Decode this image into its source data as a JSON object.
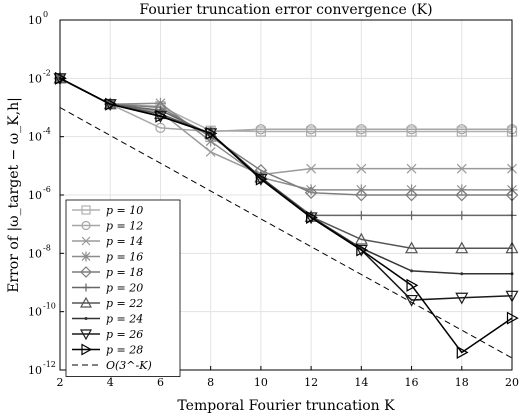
{
  "chart_data": {
    "type": "line",
    "title": "Fourier truncation error convergence (K)",
    "xlabel": "Temporal Fourier truncation K",
    "ylabel": "Error of |ω_target − ω_K,h|",
    "xlim": [
      2,
      20
    ],
    "ylim": [
      1e-12,
      1
    ],
    "yscale": "log",
    "grid": true,
    "legend_position": "lower-left",
    "x": [
      2,
      4,
      6,
      8,
      10,
      12,
      14,
      16,
      18,
      20
    ],
    "xticks": [
      "2",
      "4",
      "6",
      "8",
      "10",
      "12",
      "14",
      "16",
      "18",
      "20"
    ],
    "yticks": [
      {
        "base": "10",
        "exp": "0"
      },
      {
        "base": "10",
        "exp": "-2"
      },
      {
        "base": "10",
        "exp": "-4"
      },
      {
        "base": "10",
        "exp": "-6"
      },
      {
        "base": "10",
        "exp": "-8"
      },
      {
        "base": "10",
        "exp": "-10"
      },
      {
        "base": "10",
        "exp": "-12"
      }
    ],
    "series": [
      {
        "name": "p = 10",
        "color": "#b0b0b0",
        "marker": "square",
        "values": [
          0.01,
          0.0013,
          0.0011,
          0.00016,
          0.00015,
          0.00015,
          0.00015,
          0.00015,
          0.00015,
          0.00015
        ]
      },
      {
        "name": "p = 12",
        "color": "#a6a6a6",
        "marker": "circle",
        "values": [
          0.01,
          0.0013,
          0.0002,
          0.00015,
          0.00018,
          0.00018,
          0.00018,
          0.00018,
          0.00018,
          0.00018
        ]
      },
      {
        "name": "p = 14",
        "color": "#9a9a9a",
        "marker": "x",
        "values": [
          0.01,
          0.0013,
          0.0007,
          3e-05,
          5e-06,
          8e-06,
          8e-06,
          8e-06,
          8e-06,
          8e-06
        ]
      },
      {
        "name": "p = 16",
        "color": "#8c8c8c",
        "marker": "star",
        "values": [
          0.01,
          0.0013,
          0.0014,
          7e-05,
          4e-06,
          1.5e-06,
          1.5e-06,
          1.5e-06,
          1.5e-06,
          1.5e-06
        ]
      },
      {
        "name": "p = 18",
        "color": "#7d7d7d",
        "marker": "diamond",
        "values": [
          0.01,
          0.0013,
          0.001,
          0.0001,
          7e-06,
          1.2e-06,
          1e-06,
          1e-06,
          1e-06,
          1e-06
        ]
      },
      {
        "name": "p = 20",
        "color": "#666666",
        "marker": "plus",
        "values": [
          0.01,
          0.0013,
          0.0008,
          0.00012,
          4e-06,
          2e-07,
          2e-07,
          2e-07,
          2e-07,
          2e-07
        ]
      },
      {
        "name": "p = 22",
        "color": "#555555",
        "marker": "triangle-up",
        "values": [
          0.01,
          0.0013,
          0.0006,
          0.00013,
          4e-06,
          1.8e-07,
          3e-08,
          1.5e-08,
          1.5e-08,
          1.5e-08
        ]
      },
      {
        "name": "p = 24",
        "color": "#333333",
        "marker": "dot",
        "values": [
          0.01,
          0.0013,
          0.0005,
          0.00013,
          4e-06,
          1.8e-07,
          1.5e-08,
          2.5e-09,
          2e-09,
          2e-09
        ]
      },
      {
        "name": "p = 26",
        "color": "#1a1a1a",
        "marker": "triangle-down",
        "values": [
          0.01,
          0.0013,
          0.0005,
          0.00013,
          3.5e-06,
          1.7e-07,
          1.3e-08,
          2.5e-10,
          3e-10,
          3.5e-10
        ]
      },
      {
        "name": "p = 28",
        "color": "#000000",
        "marker": "triangle-right",
        "values": [
          0.01,
          0.0013,
          0.0005,
          0.00013,
          3.5e-06,
          1.7e-07,
          1.3e-08,
          8e-10,
          4e-12,
          6e-11
        ]
      },
      {
        "name": "O(3^-K)",
        "color": "#000000",
        "marker": "none",
        "dashed": true,
        "values": [
          0.001,
          0.00011,
          1.23e-05,
          1.37e-06,
          1.52e-07,
          1.69e-08,
          1.88e-09,
          2.09e-10,
          2.32e-11,
          2.58e-12
        ]
      }
    ]
  }
}
